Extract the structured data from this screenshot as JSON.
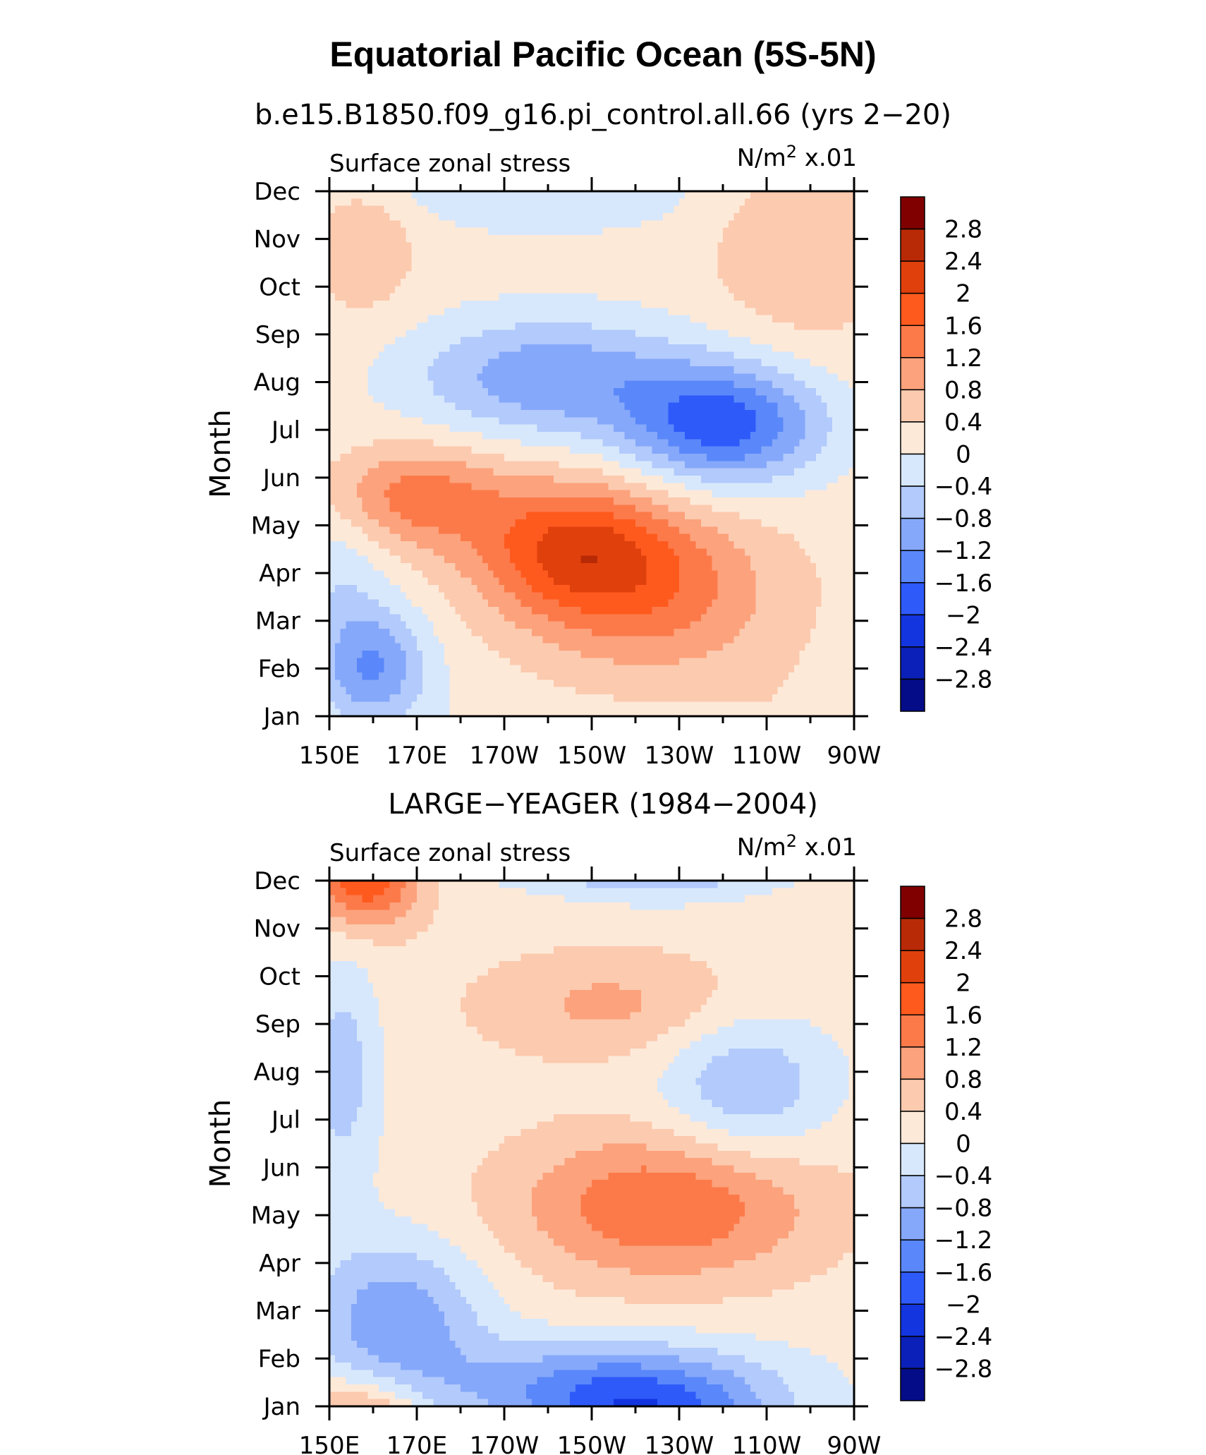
{
  "figure": {
    "title": "Equatorial Pacific Ocean (5S-5N)"
  },
  "colorbar": {
    "labels": [
      "2.8",
      "2.4",
      "2",
      "1.6",
      "1.2",
      "0.8",
      "0.4",
      "0",
      "−0.4",
      "−0.8",
      "−1.2",
      "−1.6",
      "−2",
      "−2.4",
      "−2.8"
    ],
    "colors": [
      "#800000",
      "#b82a06",
      "#e0400c",
      "#ff5a1e",
      "#fc7a4a",
      "#fca27c",
      "#fccaaf",
      "#fde9d8",
      "#d8e8fc",
      "#b2cafc",
      "#86a8fa",
      "#5a88fa",
      "#2f5afa",
      "#1235e0",
      "#0a20b8",
      "#040c88"
    ]
  },
  "chart_data": [
    {
      "type": "heatmap",
      "subtitle": "b.e15.B1850.f09_g16.pi_control.all.66 (yrs 2−20)",
      "left_string": "Surface zonal stress",
      "units_base": "N/m",
      "units_sup": "2",
      "units_scale": "x.01",
      "ylabel": "Month",
      "months": [
        "Jan",
        "Feb",
        "Mar",
        "Apr",
        "May",
        "Jun",
        "Jul",
        "Aug",
        "Sep",
        "Oct",
        "Nov",
        "Dec"
      ],
      "lon_labels": [
        "150E",
        "170E",
        "170W",
        "150W",
        "130W",
        "110W",
        "90W"
      ],
      "xlim": [
        150,
        270
      ],
      "contour_levels": [
        -2.8,
        -2.4,
        -2.0,
        -1.6,
        -1.2,
        -0.8,
        -0.4,
        0,
        0.4,
        0.8,
        1.2,
        1.6,
        2.0,
        2.4,
        2.8
      ],
      "features": [
        {
          "lon": 160,
          "month": 1.0,
          "value": -1.4,
          "slon": 9,
          "smonth": 0.9
        },
        {
          "lon": 152,
          "month": 3.0,
          "value": -0.5,
          "slon": 8,
          "smonth": 1.2
        },
        {
          "lon": 170,
          "month": 4.6,
          "value": 1.2,
          "slon": 14,
          "smonth": 0.75
        },
        {
          "lon": 205,
          "month": 3.5,
          "value": 1.6,
          "slon": 16,
          "smonth": 1.0
        },
        {
          "lon": 225,
          "month": 2.6,
          "value": 1.1,
          "slon": 20,
          "smonth": 1.3
        },
        {
          "lon": 200,
          "month": 7.1,
          "value": -1.3,
          "slon": 22,
          "smonth": 0.9
        },
        {
          "lon": 240,
          "month": 6.1,
          "value": -2.0,
          "slon": 16,
          "smonth": 0.9
        },
        {
          "lon": 200,
          "month": 11.0,
          "value": -0.6,
          "slon": 26,
          "smonth": 0.6
        },
        {
          "lon": 258,
          "month": 9.8,
          "value": 0.6,
          "slon": 14,
          "smonth": 1.4
        },
        {
          "lon": 158,
          "month": 9.9,
          "value": 0.6,
          "slon": 8,
          "smonth": 1.0
        }
      ]
    },
    {
      "type": "heatmap",
      "subtitle": "LARGE−YEAGER (1984−2004)",
      "left_string": "Surface zonal stress",
      "units_base": "N/m",
      "units_sup": "2",
      "units_scale": "x.01",
      "ylabel": "Month",
      "months": [
        "Jan",
        "Feb",
        "Mar",
        "Apr",
        "May",
        "Jun",
        "Jul",
        "Aug",
        "Sep",
        "Oct",
        "Nov",
        "Dec"
      ],
      "lon_labels": [
        "150E",
        "170E",
        "170W",
        "150W",
        "130W",
        "110W",
        "90W"
      ],
      "xlim": [
        150,
        270
      ],
      "contour_levels": [
        -2.8,
        -2.4,
        -2.0,
        -1.6,
        -1.2,
        -0.8,
        -0.4,
        0,
        0.4,
        0.8,
        1.2,
        1.6,
        2.0,
        2.4,
        2.8
      ],
      "features": [
        {
          "lon": 158,
          "month": 11.2,
          "value": 2.0,
          "slon": 9,
          "smonth": 0.8
        },
        {
          "lon": 215,
          "month": 8.4,
          "value": 0.7,
          "slon": 22,
          "smonth": 0.8
        },
        {
          "lon": 227,
          "month": 4.2,
          "value": 1.4,
          "slon": 24,
          "smonth": 1.1
        },
        {
          "lon": 165,
          "month": 1.8,
          "value": -1.3,
          "slon": 14,
          "smonth": 1.2
        },
        {
          "lon": 215,
          "month": 0.4,
          "value": -1.6,
          "slon": 26,
          "smonth": 0.7
        },
        {
          "lon": 225,
          "month": 11.6,
          "value": -1.2,
          "slon": 18,
          "smonth": 0.6
        },
        {
          "lon": 245,
          "month": 6.7,
          "value": -1.0,
          "slon": 14,
          "smonth": 1.1
        },
        {
          "lon": 153,
          "month": 7.0,
          "value": -0.8,
          "slon": 6,
          "smonth": 1.8
        }
      ]
    }
  ]
}
